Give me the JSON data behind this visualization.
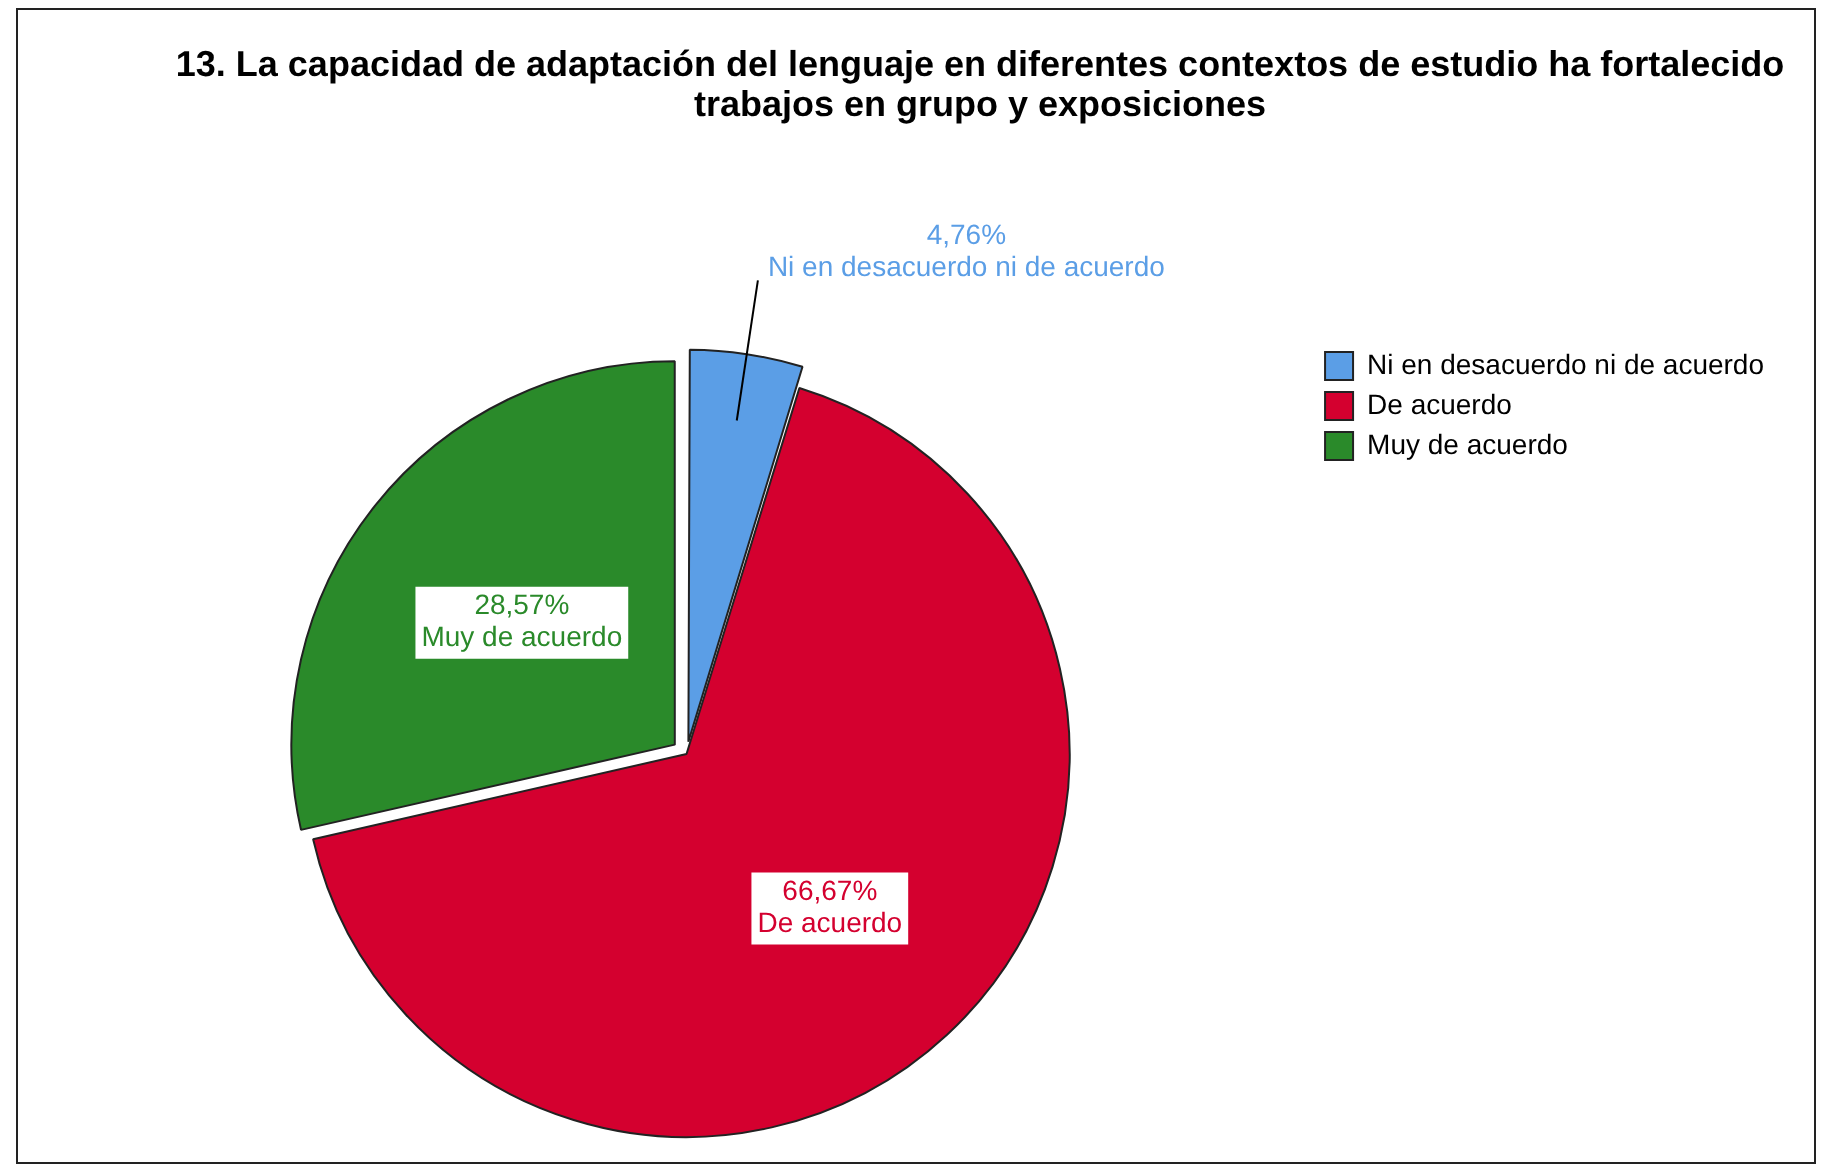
{
  "chart_data": {
    "type": "pie",
    "title": "13. La capacidad de adaptación del lenguaje en diferentes contextos de estudio ha fortalecido trabajos en grupo y exposiciones",
    "categories": [
      "Ni en desacuerdo ni de acuerdo",
      "De acuerdo",
      "Muy de acuerdo"
    ],
    "values": [
      4.76,
      66.67,
      28.57
    ],
    "colors": [
      "#5b9ee6",
      "#d4002f",
      "#2a8a2a"
    ],
    "value_labels": [
      "4,76%",
      "66,67%",
      "28,57%"
    ],
    "legend": "top right"
  }
}
